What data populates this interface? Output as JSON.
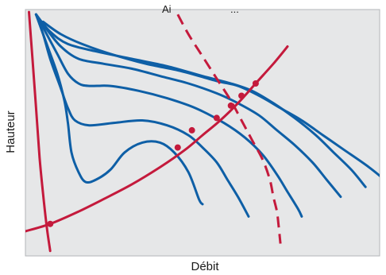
{
  "chart_data": {
    "type": "line",
    "title": "",
    "top_label_fragments": [
      "Ai",
      "..."
    ],
    "xlabel": "Débit",
    "ylabel": "Hauteur",
    "xlim": [
      0,
      100
    ],
    "ylim": [
      0,
      100
    ],
    "grid": false,
    "colors": {
      "plot_background": "#e6e7e8",
      "frame": "#b3b5b8",
      "pump_curves": "#0e5fa6",
      "system_curves": "#c41a3c",
      "dashed_line": "#c41a3c"
    },
    "series": [
      {
        "kind": "pump",
        "points": [
          [
            3,
            98
          ],
          [
            6,
            86
          ],
          [
            9,
            74
          ],
          [
            11,
            63
          ],
          [
            12,
            54
          ],
          [
            13,
            42
          ],
          [
            15,
            34
          ],
          [
            17,
            30
          ],
          [
            20,
            31
          ],
          [
            24,
            35
          ],
          [
            28,
            42
          ],
          [
            33,
            46
          ],
          [
            38,
            46
          ],
          [
            42,
            42
          ],
          [
            46,
            34
          ],
          [
            49,
            23
          ],
          [
            50,
            21
          ]
        ]
      },
      {
        "kind": "pump",
        "points": [
          [
            3,
            98
          ],
          [
            5,
            90
          ],
          [
            7,
            80
          ],
          [
            10,
            68
          ],
          [
            12,
            60
          ],
          [
            14,
            55
          ],
          [
            18,
            53
          ],
          [
            25,
            54
          ],
          [
            33,
            55
          ],
          [
            40,
            53
          ],
          [
            46,
            49
          ],
          [
            50,
            44
          ],
          [
            54,
            38
          ],
          [
            57,
            31
          ],
          [
            60,
            24
          ],
          [
            63,
            16
          ]
        ]
      },
      {
        "kind": "pump",
        "points": [
          [
            3,
            98
          ],
          [
            6,
            90
          ],
          [
            9,
            82
          ],
          [
            12,
            74
          ],
          [
            15,
            70
          ],
          [
            18,
            69
          ],
          [
            24,
            69
          ],
          [
            32,
            67
          ],
          [
            40,
            64
          ],
          [
            48,
            60
          ],
          [
            56,
            54
          ],
          [
            62,
            48
          ],
          [
            67,
            41
          ],
          [
            71,
            33
          ],
          [
            74,
            26
          ],
          [
            77,
            19
          ],
          [
            78,
            16
          ]
        ]
      },
      {
        "kind": "pump",
        "points": [
          [
            3,
            98
          ],
          [
            6,
            92
          ],
          [
            10,
            85
          ],
          [
            15,
            80
          ],
          [
            22,
            78
          ],
          [
            30,
            76
          ],
          [
            38,
            73
          ],
          [
            46,
            70
          ],
          [
            54,
            66
          ],
          [
            60,
            62
          ],
          [
            66,
            57
          ],
          [
            71,
            51
          ],
          [
            76,
            45
          ],
          [
            81,
            38
          ],
          [
            85,
            31
          ],
          [
            89,
            24
          ]
        ]
      },
      {
        "kind": "pump",
        "points": [
          [
            3,
            98
          ],
          [
            7,
            91
          ],
          [
            12,
            86
          ],
          [
            20,
            83
          ],
          [
            30,
            80
          ],
          [
            40,
            77
          ],
          [
            50,
            73
          ],
          [
            58,
            70
          ],
          [
            64,
            67
          ],
          [
            70,
            62
          ],
          [
            76,
            56
          ],
          [
            82,
            49
          ],
          [
            87,
            42
          ],
          [
            92,
            35
          ],
          [
            96,
            28
          ]
        ]
      },
      {
        "kind": "pump",
        "points": [
          [
            5,
            95
          ],
          [
            10,
            90
          ],
          [
            16,
            86
          ],
          [
            24,
            82
          ],
          [
            34,
            78
          ],
          [
            44,
            75
          ],
          [
            54,
            71
          ],
          [
            60,
            69
          ],
          [
            66,
            65
          ],
          [
            72,
            60
          ],
          [
            78,
            55
          ],
          [
            84,
            49
          ],
          [
            90,
            43
          ],
          [
            97,
            36
          ],
          [
            103,
            29
          ]
        ]
      },
      {
        "kind": "system",
        "points": [
          [
            0,
            10
          ],
          [
            7,
            13
          ],
          [
            15,
            18
          ],
          [
            22,
            23
          ],
          [
            30,
            29
          ],
          [
            38,
            36
          ],
          [
            45,
            43
          ],
          [
            50,
            49
          ],
          [
            55,
            55
          ],
          [
            60,
            62
          ],
          [
            65,
            70
          ],
          [
            70,
            78
          ],
          [
            74,
            85
          ]
        ]
      },
      {
        "kind": "system",
        "points": [
          [
            1,
            99
          ],
          [
            2,
            80
          ],
          [
            3,
            60
          ],
          [
            4,
            40
          ],
          [
            5,
            25
          ],
          [
            6,
            12
          ],
          [
            7,
            2
          ]
        ]
      },
      {
        "kind": "dashed",
        "points": [
          [
            43,
            98
          ],
          [
            46,
            90
          ],
          [
            50,
            81
          ],
          [
            54,
            72
          ],
          [
            58,
            63
          ],
          [
            61,
            55
          ],
          [
            64,
            47
          ],
          [
            67,
            39
          ],
          [
            69,
            31
          ],
          [
            70,
            24
          ],
          [
            71,
            18
          ],
          [
            71.5,
            12
          ],
          [
            72,
            5
          ]
        ]
      }
    ],
    "markers": [
      [
        7,
        13
      ],
      [
        43,
        44
      ],
      [
        47,
        51
      ],
      [
        54,
        56
      ],
      [
        58,
        61
      ],
      [
        61,
        65
      ],
      [
        65,
        70
      ]
    ]
  }
}
